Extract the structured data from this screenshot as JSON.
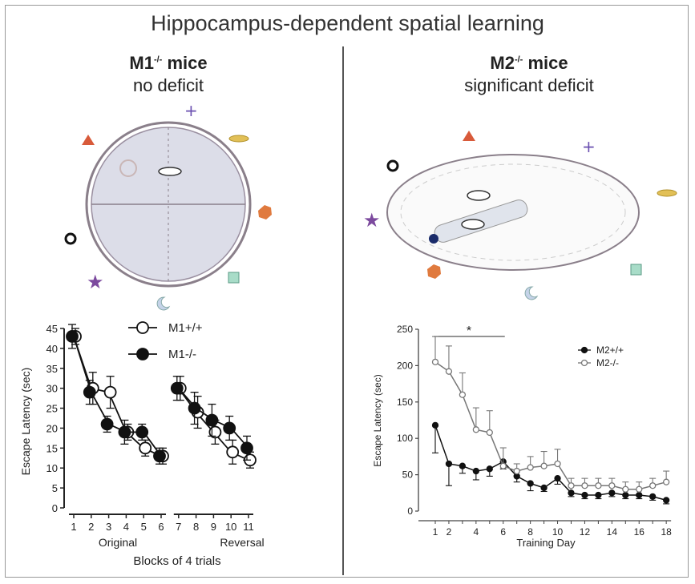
{
  "title": "Hippocampus-dependent spatial learning",
  "left_panel": {
    "heading": "M1",
    "superscript": "-/-",
    "heading_suffix": " mice",
    "subheading": "no deficit"
  },
  "right_panel": {
    "heading": "M2",
    "superscript": "-/-",
    "heading_suffix": " mice",
    "subheading": "significant deficit"
  },
  "chart_data": [
    {
      "type": "line",
      "ylabel": "Escape Latency (sec)",
      "xlabel": "Blocks of 4 trials",
      "group_labels": [
        "Original",
        "Reversal"
      ],
      "ylim": [
        0,
        45
      ],
      "yticks": [
        0,
        5,
        10,
        15,
        20,
        25,
        30,
        35,
        40,
        45
      ],
      "xticks": [
        1,
        2,
        3,
        4,
        5,
        6,
        7,
        8,
        9,
        10,
        11
      ],
      "series": [
        {
          "name": "M1+/+",
          "marker": "open-circle",
          "segments": [
            {
              "x": [
                1,
                2,
                3,
                4,
                5,
                6
              ],
              "y": [
                43,
                30,
                29,
                19,
                15,
                13
              ],
              "err": [
                2,
                4,
                4,
                2,
                2,
                2
              ]
            },
            {
              "x": [
                7,
                8,
                9,
                10,
                11
              ],
              "y": [
                30,
                24,
                19,
                14,
                12
              ],
              "err": [
                3,
                4,
                3,
                3,
                2
              ]
            }
          ]
        },
        {
          "name": "M1-/-",
          "marker": "filled-circle",
          "segments": [
            {
              "x": [
                1,
                2,
                3,
                4,
                5,
                6
              ],
              "y": [
                43,
                29,
                21,
                19,
                19,
                13
              ],
              "err": [
                3,
                3,
                2,
                3,
                2,
                2
              ]
            },
            {
              "x": [
                7,
                8,
                9,
                10,
                11
              ],
              "y": [
                30,
                25,
                22,
                20,
                15
              ],
              "err": [
                3,
                4,
                4,
                3,
                3
              ]
            }
          ]
        }
      ],
      "legend": "top-center"
    },
    {
      "type": "line",
      "ylabel": "Escape Latency (sec)",
      "xlabel": "Training Day",
      "ylim": [
        0,
        250
      ],
      "yticks": [
        0,
        50,
        100,
        150,
        200,
        250
      ],
      "xticks": [
        1,
        2,
        4,
        6,
        8,
        10,
        12,
        14,
        16,
        18
      ],
      "annotation": "*",
      "series": [
        {
          "name": "M2+/+",
          "marker": "filled-circle",
          "x": [
            1,
            2,
            3,
            4,
            5,
            6,
            7,
            8,
            9,
            10,
            11,
            12,
            13,
            14,
            15,
            16,
            17,
            18
          ],
          "y": [
            118,
            65,
            62,
            55,
            58,
            68,
            48,
            38,
            32,
            45,
            25,
            22,
            22,
            25,
            22,
            22,
            20,
            15
          ],
          "err": [
            38,
            30,
            10,
            12,
            10,
            10,
            8,
            10,
            5,
            8,
            5,
            5,
            5,
            5,
            5,
            5,
            5,
            5
          ]
        },
        {
          "name": "M2-/-",
          "marker": "open-circle",
          "x": [
            1,
            2,
            3,
            4,
            5,
            6,
            7,
            8,
            9,
            10,
            11,
            12,
            13,
            14,
            15,
            16,
            17,
            18
          ],
          "y": [
            205,
            192,
            160,
            112,
            108,
            62,
            55,
            60,
            62,
            65,
            35,
            35,
            35,
            35,
            30,
            30,
            35,
            40
          ],
          "err": [
            35,
            35,
            30,
            30,
            30,
            25,
            10,
            15,
            20,
            20,
            10,
            10,
            10,
            10,
            10,
            10,
            10,
            15
          ]
        }
      ],
      "legend": "top-right"
    }
  ]
}
